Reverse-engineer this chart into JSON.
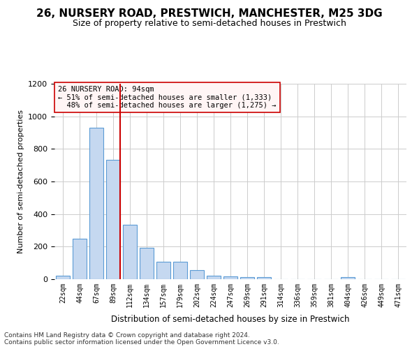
{
  "title": "26, NURSERY ROAD, PRESTWICH, MANCHESTER, M25 3DG",
  "subtitle": "Size of property relative to semi-detached houses in Prestwich",
  "xlabel": "Distribution of semi-detached houses by size in Prestwich",
  "ylabel": "Number of semi-detached properties",
  "footer": "Contains HM Land Registry data © Crown copyright and database right 2024.\nContains public sector information licensed under the Open Government Licence v3.0.",
  "bar_labels": [
    "22sqm",
    "44sqm",
    "67sqm",
    "89sqm",
    "112sqm",
    "134sqm",
    "157sqm",
    "179sqm",
    "202sqm",
    "224sqm",
    "247sqm",
    "269sqm",
    "291sqm",
    "314sqm",
    "336sqm",
    "359sqm",
    "381sqm",
    "404sqm",
    "426sqm",
    "449sqm",
    "471sqm"
  ],
  "bar_values": [
    20,
    248,
    930,
    733,
    333,
    193,
    107,
    107,
    57,
    22,
    17,
    12,
    12,
    0,
    0,
    0,
    0,
    12,
    0,
    0,
    0
  ],
  "bar_color": "#c5d8f0",
  "bar_edge_color": "#5b9bd5",
  "ylim": [
    0,
    1200
  ],
  "yticks": [
    0,
    200,
    400,
    600,
    800,
    1000,
    1200
  ],
  "property_label": "26 NURSERY ROAD: 94sqm",
  "pct_smaller": 51,
  "count_smaller": 1333,
  "pct_larger": 48,
  "count_larger": 1275,
  "vline_bin_index": 3,
  "vline_color": "#cc0000",
  "annotation_box_color": "#fff5f5",
  "annotation_box_edgecolor": "#cc0000",
  "grid_color": "#cccccc",
  "background_color": "#ffffff"
}
